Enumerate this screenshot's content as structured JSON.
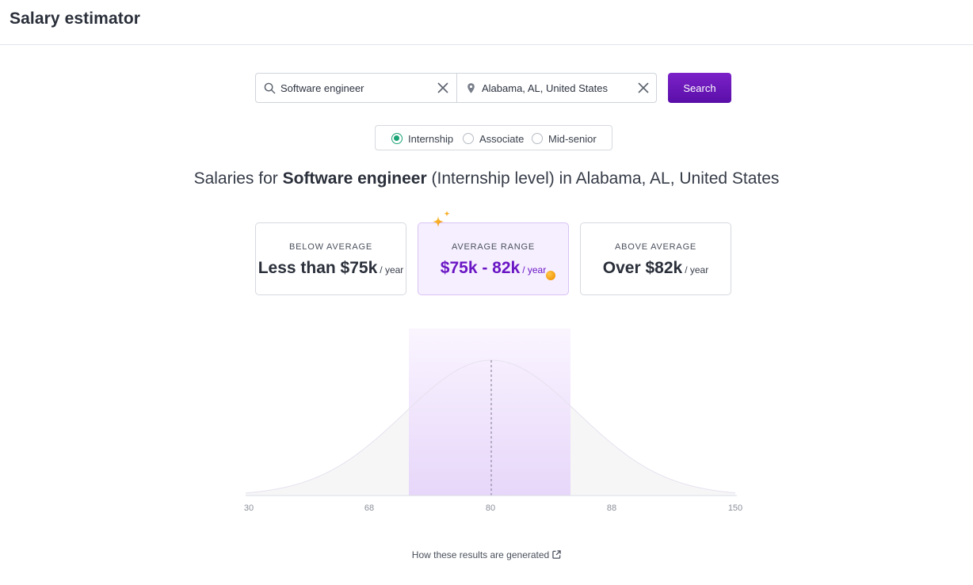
{
  "header": {
    "title": "Salary estimator"
  },
  "search": {
    "job_value": "Software engineer",
    "location_value": "Alabama, AL, United States",
    "button_label": "Search",
    "job_icon": "search-icon",
    "location_icon": "location-pin-icon"
  },
  "levels": {
    "selected": "Internship",
    "options": [
      "Internship",
      "Associate",
      "Mid-senior"
    ]
  },
  "headline": {
    "prefix": "Salaries for ",
    "job": "Software engineer",
    "middle": " (Internship level) in ",
    "location": "Alabama, AL, United States"
  },
  "cards": {
    "below": {
      "label": "BELOW AVERAGE",
      "value": "Less than $75k",
      "unit": "/ year"
    },
    "average": {
      "label": "AVERAGE RANGE",
      "value": "$75k - 82k",
      "unit": "/ year"
    },
    "above": {
      "label": "ABOVE AVERAGE",
      "value": "Over $82k",
      "unit": "/ year"
    }
  },
  "chart_data": {
    "type": "area",
    "x_ticks": [
      "30",
      "68",
      "80",
      "88",
      "150"
    ],
    "highlight_range": [
      75,
      82
    ],
    "median": 80
  },
  "footer": {
    "link_label": "How these results are generated"
  },
  "colors": {
    "accent": "#6a16c4",
    "button": "#5a0ea8",
    "radio_selected": "#1aa374",
    "highlight": "#e8d8fb"
  }
}
